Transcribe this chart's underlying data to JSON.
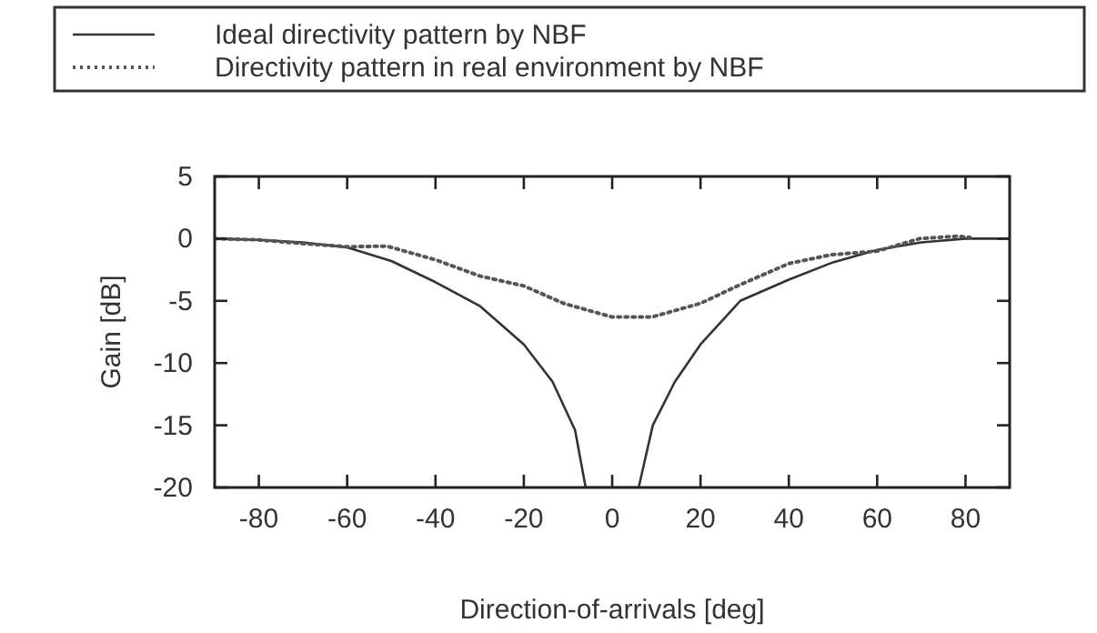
{
  "chart_data": {
    "type": "line",
    "xlabel": "Direction-of-arrivals [deg]",
    "ylabel": "Gain [dB]",
    "xlim": [
      -90,
      90
    ],
    "ylim": [
      -20,
      5
    ],
    "xticks": [
      -80,
      -60,
      -40,
      -20,
      0,
      20,
      40,
      60,
      80
    ],
    "yticks": [
      -20,
      -15,
      -10,
      -5,
      0,
      5
    ],
    "legend": "top",
    "grid": false,
    "series": [
      {
        "name": "Ideal directivity pattern by NBF",
        "color": "#333333",
        "line_style": "solid",
        "x": [
          -90,
          -80,
          -70,
          -60,
          -50,
          -40,
          -30,
          -20,
          -13.5,
          -8.4,
          -6,
          6,
          9.2,
          14.2,
          20,
          29,
          40,
          50,
          60,
          70,
          80,
          90
        ],
        "values": [
          0,
          -0.1,
          -0.3,
          -0.7,
          -1.8,
          -3.5,
          -5.4,
          -8.5,
          -11.5,
          -15.4,
          -20,
          -20,
          -15,
          -11.5,
          -8.5,
          -5,
          -3.3,
          -1.9,
          -0.9,
          -0.3,
          0,
          0
        ]
      },
      {
        "name": "Directivity pattern in real environment by NBF",
        "color": "#555555",
        "line_style": "dotted",
        "x": [
          -90,
          -80,
          -70,
          -60,
          -51,
          -40,
          -30,
          -20,
          -11,
          0,
          9,
          20,
          29,
          40,
          49.5,
          60,
          69.6,
          78,
          81
        ],
        "values": [
          0,
          -0.1,
          -0.4,
          -0.65,
          -0.6,
          -1.7,
          -3.0,
          -3.8,
          -5.2,
          -6.3,
          -6.3,
          -5.2,
          -3.7,
          -2.0,
          -1.3,
          -1.0,
          0,
          0.2,
          0.1
        ]
      }
    ]
  }
}
